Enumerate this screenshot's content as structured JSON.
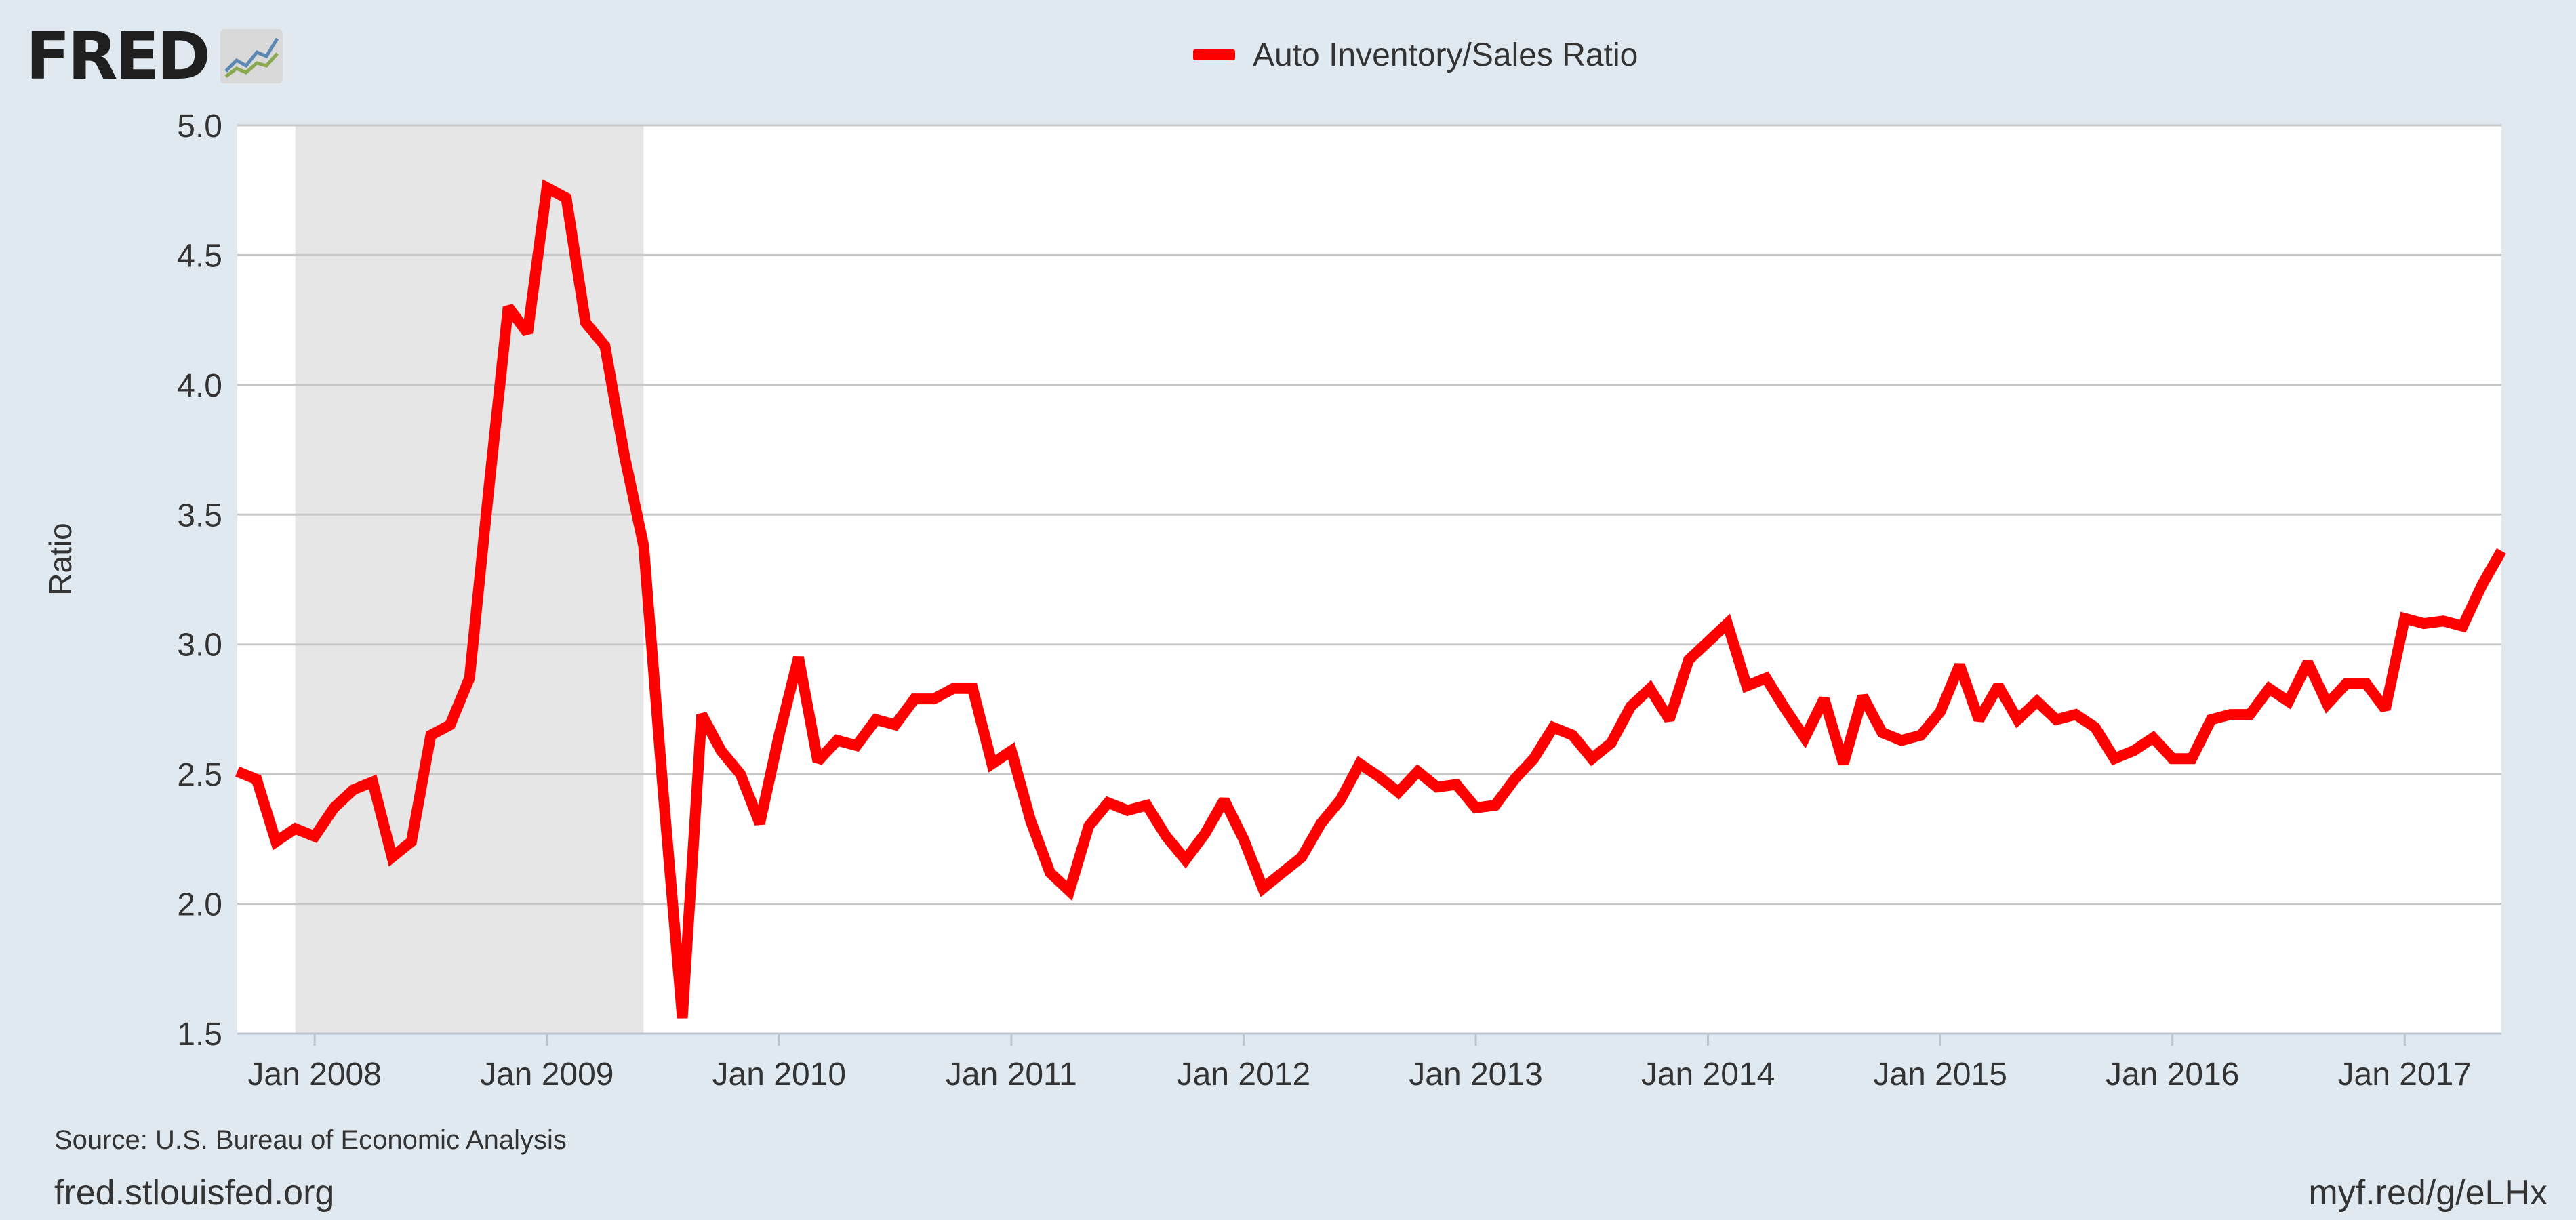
{
  "branding": {
    "logo_text": "FRED",
    "logo_mark": "fred-chart-logo-icon"
  },
  "legend": {
    "label": "Auto Inventory/Sales Ratio",
    "color": "#ff0000"
  },
  "footer": {
    "source": "Source: U.S. Bureau of Economic Analysis",
    "site": "fred.stlouisfed.org",
    "shortlink": "myf.red/g/eLHx"
  },
  "colors": {
    "background": "#e1e9f0",
    "plot_background": "#ffffff",
    "recession_band": "#e6e6e6",
    "grid": "#c8c8c8",
    "series": "#ff0000"
  },
  "chart_data": {
    "type": "line",
    "title": "",
    "xlabel": "",
    "ylabel": "Ratio",
    "ylim": [
      1.5,
      5.0
    ],
    "y_ticks": [
      "1.5",
      "2.0",
      "2.5",
      "3.0",
      "3.5",
      "4.0",
      "4.5",
      "5.0"
    ],
    "x_ticks": [
      "Jan 2008",
      "Jan 2009",
      "Jan 2010",
      "Jan 2011",
      "Jan 2012",
      "Jan 2013",
      "Jan 2014",
      "Jan 2015",
      "Jan 2016",
      "Jan 2017"
    ],
    "x_range": [
      "2007-09",
      "2017-06"
    ],
    "grid": true,
    "legend_position": "top-center",
    "recession": {
      "start": "2007-12",
      "end": "2009-06"
    },
    "series": [
      {
        "name": "Auto Inventory/Sales Ratio",
        "color": "#ff0000",
        "x": [
          "2007-09",
          "2007-10",
          "2007-11",
          "2007-12",
          "2008-01",
          "2008-02",
          "2008-03",
          "2008-04",
          "2008-05",
          "2008-06",
          "2008-07",
          "2008-08",
          "2008-09",
          "2008-10",
          "2008-11",
          "2008-12",
          "2009-01",
          "2009-02",
          "2009-03",
          "2009-04",
          "2009-05",
          "2009-06",
          "2009-07",
          "2009-08",
          "2009-09",
          "2009-10",
          "2009-11",
          "2009-12",
          "2010-01",
          "2010-02",
          "2010-03",
          "2010-04",
          "2010-05",
          "2010-06",
          "2010-07",
          "2010-08",
          "2010-09",
          "2010-10",
          "2010-11",
          "2010-12",
          "2011-01",
          "2011-02",
          "2011-03",
          "2011-04",
          "2011-05",
          "2011-06",
          "2011-07",
          "2011-08",
          "2011-09",
          "2011-10",
          "2011-11",
          "2011-12",
          "2012-01",
          "2012-02",
          "2012-03",
          "2012-04",
          "2012-05",
          "2012-06",
          "2012-07",
          "2012-08",
          "2012-09",
          "2012-10",
          "2012-11",
          "2012-12",
          "2013-01",
          "2013-02",
          "2013-03",
          "2013-04",
          "2013-05",
          "2013-06",
          "2013-07",
          "2013-08",
          "2013-09",
          "2013-10",
          "2013-11",
          "2013-12",
          "2014-01",
          "2014-02",
          "2014-03",
          "2014-04",
          "2014-05",
          "2014-06",
          "2014-07",
          "2014-08",
          "2014-09",
          "2014-10",
          "2014-11",
          "2014-12",
          "2015-01",
          "2015-02",
          "2015-03",
          "2015-04",
          "2015-05",
          "2015-06",
          "2015-07",
          "2015-08",
          "2015-09",
          "2015-10",
          "2015-11",
          "2015-12",
          "2016-01",
          "2016-02",
          "2016-03",
          "2016-04",
          "2016-05",
          "2016-06",
          "2016-07",
          "2016-08",
          "2016-09",
          "2016-10",
          "2016-11",
          "2016-12",
          "2017-01",
          "2017-02",
          "2017-03",
          "2017-04",
          "2017-05",
          "2017-06"
        ],
        "values": [
          2.51,
          2.48,
          2.24,
          2.29,
          2.26,
          2.37,
          2.44,
          2.47,
          2.18,
          2.24,
          2.65,
          2.69,
          2.87,
          3.6,
          4.3,
          4.2,
          4.76,
          4.72,
          4.24,
          4.15,
          3.73,
          3.38,
          2.44,
          1.56,
          2.73,
          2.59,
          2.5,
          2.31,
          2.65,
          2.95,
          2.55,
          2.63,
          2.61,
          2.71,
          2.69,
          2.79,
          2.79,
          2.83,
          2.83,
          2.54,
          2.59,
          2.32,
          2.12,
          2.05,
          2.3,
          2.39,
          2.36,
          2.38,
          2.26,
          2.17,
          2.27,
          2.4,
          2.25,
          2.06,
          2.12,
          2.18,
          2.31,
          2.4,
          2.54,
          2.49,
          2.43,
          2.51,
          2.45,
          2.46,
          2.37,
          2.38,
          2.48,
          2.56,
          2.68,
          2.65,
          2.56,
          2.62,
          2.76,
          2.83,
          2.71,
          2.94,
          3.01,
          3.08,
          2.84,
          2.87,
          2.75,
          2.64,
          2.79,
          2.54,
          2.8,
          2.66,
          2.63,
          2.65,
          2.74,
          2.92,
          2.71,
          2.84,
          2.71,
          2.78,
          2.71,
          2.73,
          2.68,
          2.56,
          2.59,
          2.64,
          2.56,
          2.56,
          2.71,
          2.73,
          2.73,
          2.83,
          2.78,
          2.93,
          2.77,
          2.85,
          2.85,
          2.75,
          3.1,
          3.08,
          3.09,
          3.07,
          3.23,
          3.36
        ]
      }
    ]
  }
}
